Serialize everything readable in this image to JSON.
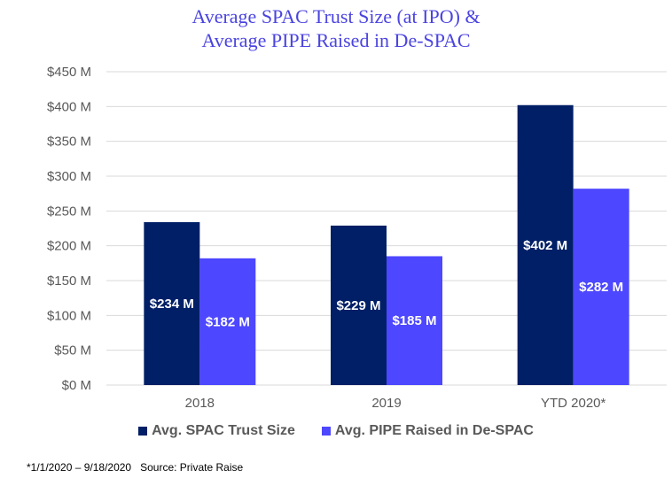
{
  "chart_data": {
    "type": "bar",
    "title_lines": [
      "Average SPAC Trust Size (at IPO) &",
      "Average PIPE Raised in De-SPAC"
    ],
    "xlabel": "",
    "ylabel": "",
    "categories": [
      "2018",
      "2019",
      "YTD 2020*"
    ],
    "series": [
      {
        "name": "Avg. SPAC Trust Size",
        "color": "#001f66",
        "values": [
          234,
          229,
          402
        ],
        "labels": [
          "$234 M",
          "$229 M",
          "$402 M"
        ]
      },
      {
        "name": "Avg. PIPE Raised in De-SPAC",
        "color": "#4d47ff",
        "values": [
          182,
          185,
          282
        ],
        "labels": [
          "$182 M",
          "$185 M",
          "$282 M"
        ]
      }
    ],
    "ylim": [
      0,
      450
    ],
    "yticks": [
      0,
      50,
      100,
      150,
      200,
      250,
      300,
      350,
      400,
      450
    ],
    "ytick_labels": [
      "$0 M",
      "$50 M",
      "$100 M",
      "$150 M",
      "$200 M",
      "$250 M",
      "$300 M",
      "$350 M",
      "$400 M",
      "$450 M"
    ],
    "grid": true,
    "legend_position": "bottom",
    "units": "USD millions"
  },
  "footnote": "*1/1/2020 – 9/18/2020   Source: Private Raise",
  "colors": {
    "title": "#4b44e0",
    "grid": "#d9d9d9",
    "axis_text": "#595959"
  }
}
